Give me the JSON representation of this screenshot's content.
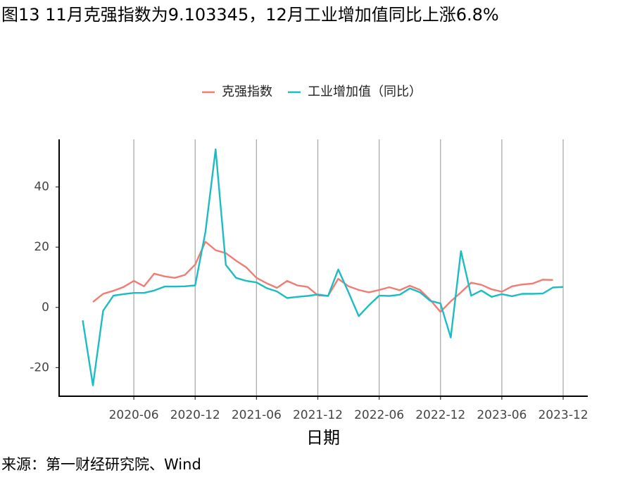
{
  "chart_data": {
    "type": "line",
    "title": "图13 11月克强指数为9.103345，12月工业增加值同比上涨6.8%",
    "x_label": "日期",
    "source": "来源：第一财经研究院、Wind",
    "x": [
      "2020-01",
      "2020-02",
      "2020-03",
      "2020-04",
      "2020-05",
      "2020-06",
      "2020-07",
      "2020-08",
      "2020-09",
      "2020-10",
      "2020-11",
      "2020-12",
      "2021-01",
      "2021-02",
      "2021-03",
      "2021-04",
      "2021-05",
      "2021-06",
      "2021-07",
      "2021-08",
      "2021-09",
      "2021-10",
      "2021-11",
      "2021-12",
      "2022-01",
      "2022-02",
      "2022-03",
      "2022-04",
      "2022-05",
      "2022-06",
      "2022-07",
      "2022-08",
      "2022-09",
      "2022-10",
      "2022-11",
      "2022-12",
      "2023-01",
      "2023-02",
      "2023-03",
      "2023-04",
      "2023-05",
      "2023-06",
      "2023-07",
      "2023-08",
      "2023-09",
      "2023-10",
      "2023-11",
      "2023-12"
    ],
    "xticks": [
      "2020-06",
      "2020-12",
      "2021-06",
      "2021-12",
      "2022-06",
      "2022-12",
      "2023-06",
      "2023-12"
    ],
    "ylim": [
      -29.5,
      55.8
    ],
    "yticks": [
      -20,
      0,
      20,
      40
    ],
    "grid": "x",
    "legend": "top",
    "series": [
      {
        "name": "克强指数",
        "color": "#f07c74",
        "values": [
          null,
          1.8,
          4.5,
          5.5,
          6.8,
          8.8,
          7.0,
          11.2,
          10.3,
          9.8,
          10.8,
          14.2,
          21.8,
          19.0,
          18.0,
          15.5,
          13.3,
          9.8,
          8.0,
          6.5,
          8.8,
          7.3,
          6.8,
          4.0,
          3.8,
          9.5,
          7.0,
          5.8,
          5.0,
          5.8,
          6.7,
          5.7,
          7.2,
          5.8,
          2.5,
          -1.5,
          2.0,
          5.0,
          8.2,
          7.5,
          6.0,
          5.2,
          7.0,
          7.6,
          7.9,
          9.2,
          9.1,
          null
        ]
      },
      {
        "name": "工业增加值（同比）",
        "color": "#1bbdc2",
        "values": [
          -4.3,
          -25.9,
          -1.1,
          3.9,
          4.4,
          4.8,
          4.8,
          5.6,
          6.9,
          6.9,
          7.0,
          7.3,
          25.0,
          52.5,
          14.1,
          9.8,
          8.8,
          8.3,
          6.4,
          5.3,
          3.1,
          3.5,
          3.8,
          4.3,
          3.8,
          12.6,
          5.0,
          -2.9,
          0.7,
          3.9,
          3.8,
          4.2,
          6.3,
          5.0,
          2.2,
          1.3,
          -10.0,
          18.7,
          3.9,
          5.6,
          3.5,
          4.4,
          3.7,
          4.5,
          4.5,
          4.6,
          6.6,
          6.8
        ]
      }
    ]
  }
}
